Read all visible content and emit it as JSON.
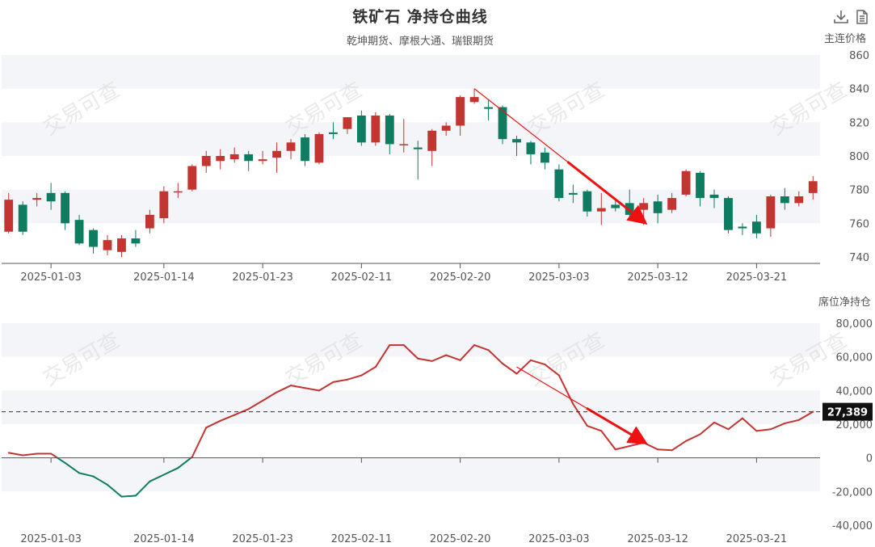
{
  "title": "铁矿石 净持仓曲线",
  "subtitle": "乾坤期货、摩根大通、瑞银期货",
  "watermark": "交易可查",
  "toolbar": {
    "download_icon": "download-icon",
    "data_view_icon": "document-icon"
  },
  "colors": {
    "up": "#c23531",
    "down": "#0e7c61",
    "line_pos": "#c23531",
    "line_neg": "#0e7c61",
    "arrow": "#ee1111",
    "band": "#f4f5f9"
  },
  "chart_data": [
    {
      "type": "candlestick",
      "ylabel": "主连价格",
      "ylim": [
        740,
        860
      ],
      "yticks": [
        740,
        760,
        780,
        800,
        820,
        840,
        860
      ],
      "xticks": [
        "2025-01-03",
        "2025-01-14",
        "2025-01-23",
        "2025-02-11",
        "2025-02-20",
        "2025-03-03",
        "2025-03-12",
        "2025-03-21"
      ],
      "xtick_index": [
        3,
        11,
        18,
        25,
        32,
        39,
        46,
        53
      ],
      "count": 58,
      "candles": [
        {
          "o": 755,
          "c": 774,
          "h": 778,
          "l": 754
        },
        {
          "o": 771,
          "c": 755,
          "h": 773,
          "l": 753
        },
        {
          "o": 774,
          "c": 775,
          "h": 778,
          "l": 770
        },
        {
          "o": 778,
          "c": 773,
          "h": 784,
          "l": 768
        },
        {
          "o": 778,
          "c": 760,
          "h": 779,
          "l": 756
        },
        {
          "o": 762,
          "c": 748,
          "h": 765,
          "l": 747
        },
        {
          "o": 756,
          "c": 746,
          "h": 757,
          "l": 742
        },
        {
          "o": 744,
          "c": 750,
          "h": 753,
          "l": 741
        },
        {
          "o": 743,
          "c": 751,
          "h": 753,
          "l": 740
        },
        {
          "o": 751,
          "c": 748,
          "h": 756,
          "l": 746
        },
        {
          "o": 757,
          "c": 765,
          "h": 768,
          "l": 754
        },
        {
          "o": 763,
          "c": 779,
          "h": 782,
          "l": 760
        },
        {
          "o": 779,
          "c": 779,
          "h": 784,
          "l": 775
        },
        {
          "o": 780,
          "c": 794,
          "h": 795,
          "l": 779
        },
        {
          "o": 794,
          "c": 800,
          "h": 803,
          "l": 790
        },
        {
          "o": 797,
          "c": 800,
          "h": 804,
          "l": 792
        },
        {
          "o": 798,
          "c": 801,
          "h": 805,
          "l": 796
        },
        {
          "o": 801,
          "c": 797,
          "h": 803,
          "l": 791
        },
        {
          "o": 797,
          "c": 798,
          "h": 803,
          "l": 795
        },
        {
          "o": 799,
          "c": 803,
          "h": 808,
          "l": 790
        },
        {
          "o": 803,
          "c": 808,
          "h": 810,
          "l": 798
        },
        {
          "o": 811,
          "c": 797,
          "h": 813,
          "l": 794
        },
        {
          "o": 796,
          "c": 813,
          "h": 814,
          "l": 795
        },
        {
          "o": 814,
          "c": 813,
          "h": 820,
          "l": 810
        },
        {
          "o": 816,
          "c": 823,
          "h": 823,
          "l": 813
        },
        {
          "o": 824,
          "c": 808,
          "h": 827,
          "l": 806
        },
        {
          "o": 808,
          "c": 824,
          "h": 826,
          "l": 806
        },
        {
          "o": 824,
          "c": 807,
          "h": 825,
          "l": 801
        },
        {
          "o": 807,
          "c": 807,
          "h": 822,
          "l": 802
        },
        {
          "o": 805,
          "c": 804,
          "h": 809,
          "l": 786
        },
        {
          "o": 803,
          "c": 815,
          "h": 816,
          "l": 794
        },
        {
          "o": 815,
          "c": 818,
          "h": 820,
          "l": 812
        },
        {
          "o": 818,
          "c": 835,
          "h": 836,
          "l": 812
        },
        {
          "o": 832,
          "c": 835,
          "h": 840,
          "l": 831
        },
        {
          "o": 829,
          "c": 828,
          "h": 833,
          "l": 821
        },
        {
          "o": 829,
          "c": 810,
          "h": 830,
          "l": 807
        },
        {
          "o": 810,
          "c": 808,
          "h": 812,
          "l": 800
        },
        {
          "o": 808,
          "c": 801,
          "h": 809,
          "l": 795
        },
        {
          "o": 802,
          "c": 796,
          "h": 805,
          "l": 792
        },
        {
          "o": 792,
          "c": 775,
          "h": 795,
          "l": 773
        },
        {
          "o": 778,
          "c": 777,
          "h": 783,
          "l": 772
        },
        {
          "o": 779,
          "c": 767,
          "h": 780,
          "l": 764
        },
        {
          "o": 767,
          "c": 769,
          "h": 778,
          "l": 759
        },
        {
          "o": 771,
          "c": 769,
          "h": 775,
          "l": 767
        },
        {
          "o": 772,
          "c": 765,
          "h": 780,
          "l": 762
        },
        {
          "o": 768,
          "c": 772,
          "h": 775,
          "l": 759
        },
        {
          "o": 773,
          "c": 766,
          "h": 777,
          "l": 760
        },
        {
          "o": 768,
          "c": 775,
          "h": 778,
          "l": 766
        },
        {
          "o": 777,
          "c": 791,
          "h": 792,
          "l": 776
        },
        {
          "o": 790,
          "c": 775,
          "h": 791,
          "l": 770
        },
        {
          "o": 777,
          "c": 775,
          "h": 780,
          "l": 769
        },
        {
          "o": 775,
          "c": 756,
          "h": 776,
          "l": 754
        },
        {
          "o": 758,
          "c": 757,
          "h": 760,
          "l": 753
        },
        {
          "o": 761,
          "c": 754,
          "h": 765,
          "l": 751
        },
        {
          "o": 757,
          "c": 776,
          "h": 777,
          "l": 752
        },
        {
          "o": 776,
          "c": 772,
          "h": 781,
          "l": 768
        },
        {
          "o": 772,
          "c": 776,
          "h": 779,
          "l": 770
        },
        {
          "o": 778,
          "c": 785,
          "h": 788,
          "l": 774
        }
      ],
      "annotation": {
        "from_index": 33,
        "from_value": 840,
        "to_index": 45,
        "to_value": 761
      }
    },
    {
      "type": "line",
      "ylabel": "席位净持仓",
      "ylim": [
        -40000,
        80000
      ],
      "yticks": [
        -40000,
        -20000,
        0,
        20000,
        40000,
        60000,
        80000
      ],
      "ytick_labels": [
        "-40,000",
        "-20,000",
        "0",
        "20,000",
        "40,000",
        "60,000",
        "80,000"
      ],
      "xticks": [
        "2025-01-03",
        "2025-01-14",
        "2025-01-23",
        "2025-02-11",
        "2025-02-20",
        "2025-03-03",
        "2025-03-12",
        "2025-03-21"
      ],
      "values": [
        3000,
        1500,
        2500,
        2500,
        -3000,
        -9000,
        -11000,
        -16000,
        -23000,
        -22500,
        -14000,
        -10000,
        -6000,
        500,
        18000,
        22000,
        25500,
        29000,
        34000,
        39000,
        43000,
        41500,
        40000,
        45000,
        46500,
        49000,
        54000,
        67000,
        67000,
        59000,
        57500,
        61000,
        58000,
        67000,
        64000,
        56000,
        50000,
        58000,
        55500,
        49000,
        32000,
        19000,
        16000,
        5000,
        7000,
        9000,
        5000,
        4500,
        10000,
        14000,
        21000,
        17000,
        23500,
        16000,
        17000,
        20500,
        22500,
        27389
      ],
      "current_value": 27389,
      "current_label": "27,389",
      "annotation": {
        "from_index": 36,
        "from_value": 54000,
        "to_index": 45,
        "to_value": 9500
      }
    }
  ]
}
